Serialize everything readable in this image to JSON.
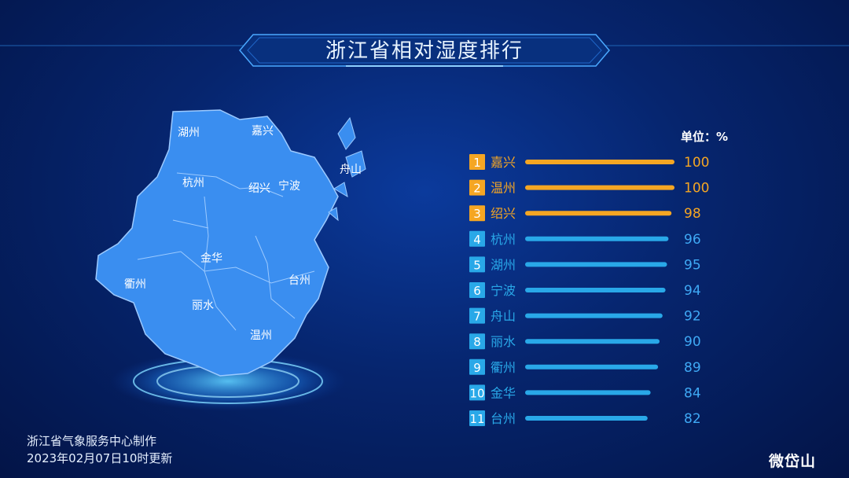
{
  "title": "浙江省相对湿度排行",
  "unit_label": "单位：%",
  "footer": {
    "line1": "浙江省气象服务中心制作",
    "line2": "2023年02月07日10时更新"
  },
  "logo": "微岱山",
  "map_cities": [
    "湖州",
    "嘉兴",
    "杭州",
    "绍兴",
    "宁波",
    "舟山",
    "金华",
    "衢州",
    "台州",
    "丽水",
    "温州"
  ],
  "colors": {
    "top": "#f5a623",
    "normal": "#29a8e8",
    "value_top": "#f5a623",
    "value_normal": "#3fa9f5"
  },
  "chart_data": {
    "type": "bar",
    "orientation": "horizontal",
    "title": "浙江省相对湿度排行",
    "unit": "%",
    "ranks": [
      "1",
      "2",
      "3",
      "4",
      "5",
      "6",
      "7",
      "8",
      "9",
      "10",
      "11"
    ],
    "categories": [
      "嘉兴",
      "温州",
      "绍兴",
      "杭州",
      "湖州",
      "宁波",
      "舟山",
      "丽水",
      "衢州",
      "金华",
      "台州"
    ],
    "values": [
      100,
      100,
      98,
      96,
      95,
      94,
      92,
      90,
      89,
      84,
      82
    ],
    "highlight_top": 3,
    "xlim": [
      0,
      100
    ]
  }
}
